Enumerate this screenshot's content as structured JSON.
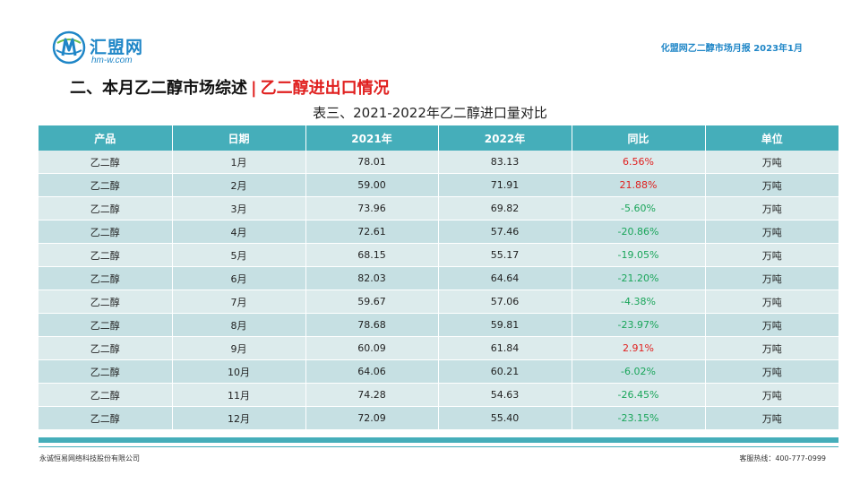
{
  "header": {
    "logo_text": "汇盟网",
    "logo_domain": "hm-w.com",
    "report_title": "化盟网乙二醇市场月报   2023年1月"
  },
  "section": {
    "title": "二、本月乙二醇市场综述",
    "separator": "|",
    "subtitle": "乙二醇进出口情况"
  },
  "table": {
    "caption": "表三、2021-2022年乙二醇进口量对比",
    "headers": [
      "产品",
      "日期",
      "2021年",
      "2022年",
      "同比",
      "单位"
    ],
    "rows": [
      [
        "乙二醇",
        "1月",
        "78.01",
        "83.13",
        "6.56%",
        "万吨"
      ],
      [
        "乙二醇",
        "2月",
        "59.00",
        "71.91",
        "21.88%",
        "万吨"
      ],
      [
        "乙二醇",
        "3月",
        "73.96",
        "69.82",
        "-5.60%",
        "万吨"
      ],
      [
        "乙二醇",
        "4月",
        "72.61",
        "57.46",
        "-20.86%",
        "万吨"
      ],
      [
        "乙二醇",
        "5月",
        "68.15",
        "55.17",
        "-19.05%",
        "万吨"
      ],
      [
        "乙二醇",
        "6月",
        "82.03",
        "64.64",
        "-21.20%",
        "万吨"
      ],
      [
        "乙二醇",
        "7月",
        "59.67",
        "57.06",
        "-4.38%",
        "万吨"
      ],
      [
        "乙二醇",
        "8月",
        "78.68",
        "59.81",
        "-23.97%",
        "万吨"
      ],
      [
        "乙二醇",
        "9月",
        "60.09",
        "61.84",
        "2.91%",
        "万吨"
      ],
      [
        "乙二醇",
        "10月",
        "64.06",
        "60.21",
        "-6.02%",
        "万吨"
      ],
      [
        "乙二醇",
        "11月",
        "74.28",
        "54.63",
        "-26.45%",
        "万吨"
      ],
      [
        "乙二醇",
        "12月",
        "72.09",
        "55.40",
        "-23.15%",
        "万吨"
      ]
    ]
  },
  "footer": {
    "company": "永诚恒易网络科技股份有限公司",
    "hotline": "客服热线：400-777-0999"
  },
  "colors": {
    "header_bg": "#45aeba",
    "row_light": "#dcebec",
    "row_dark": "#c6e0e3",
    "positive": "#e0201f",
    "negative": "#1aa55a",
    "brand": "#1f86c7"
  }
}
